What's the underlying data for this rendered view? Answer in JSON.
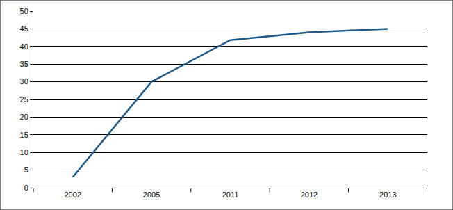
{
  "chart_data": {
    "type": "line",
    "categories": [
      "2002",
      "2005",
      "2011",
      "2012",
      "2013"
    ],
    "values": [
      3,
      30,
      41.8,
      44,
      45
    ],
    "color": "#1f5a8b",
    "ylim": [
      0,
      50
    ],
    "yticks": [
      0,
      5,
      10,
      15,
      20,
      25,
      30,
      35,
      40,
      45,
      50
    ],
    "grid": true
  }
}
